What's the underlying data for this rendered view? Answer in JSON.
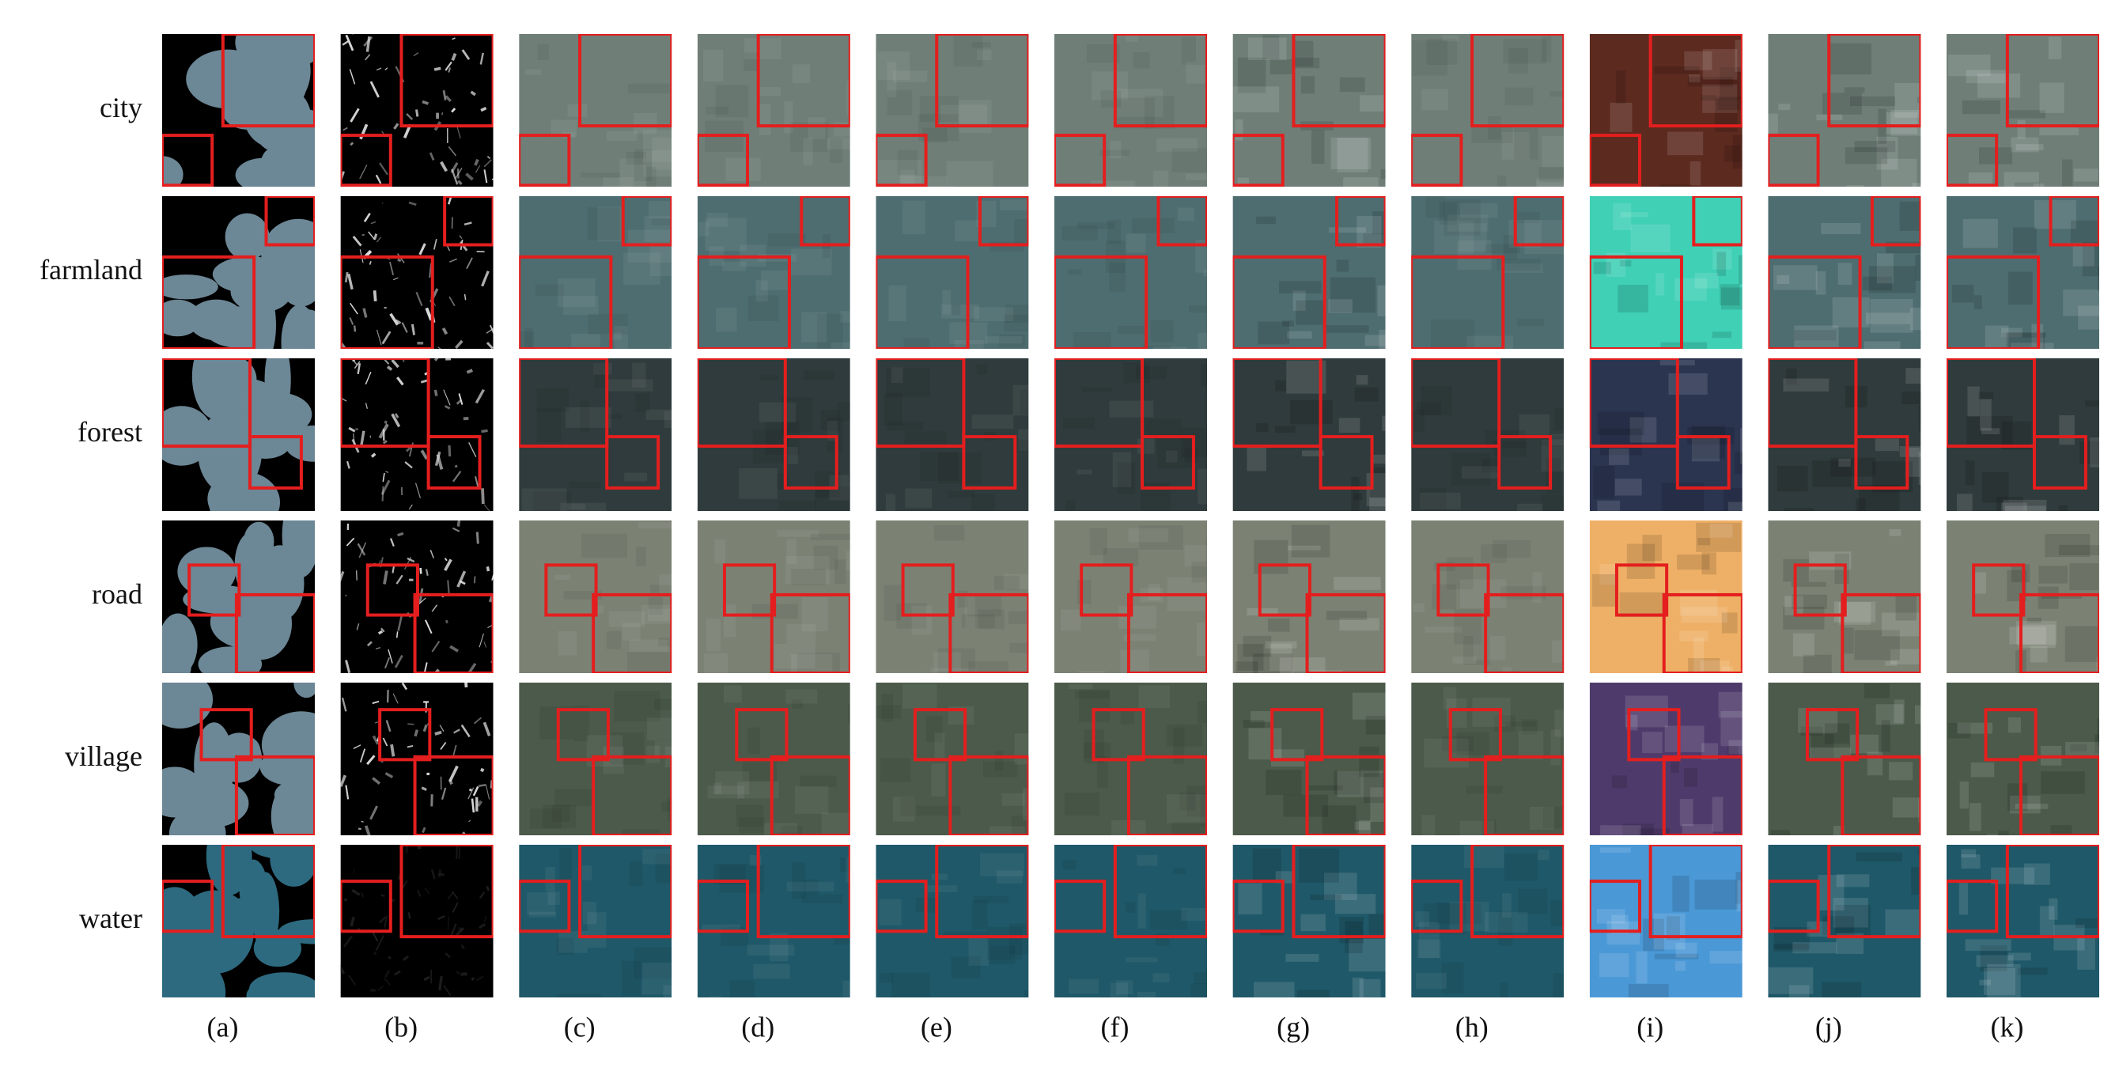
{
  "row_labels": [
    "city",
    "farmland",
    "forest",
    "road",
    "village",
    "water"
  ],
  "column_labels": [
    "(a)",
    "(b)",
    "(c)",
    "(d)",
    "(e)",
    "(f)",
    "(g)",
    "(h)",
    "(i)",
    "(j)",
    "(k)"
  ]
}
